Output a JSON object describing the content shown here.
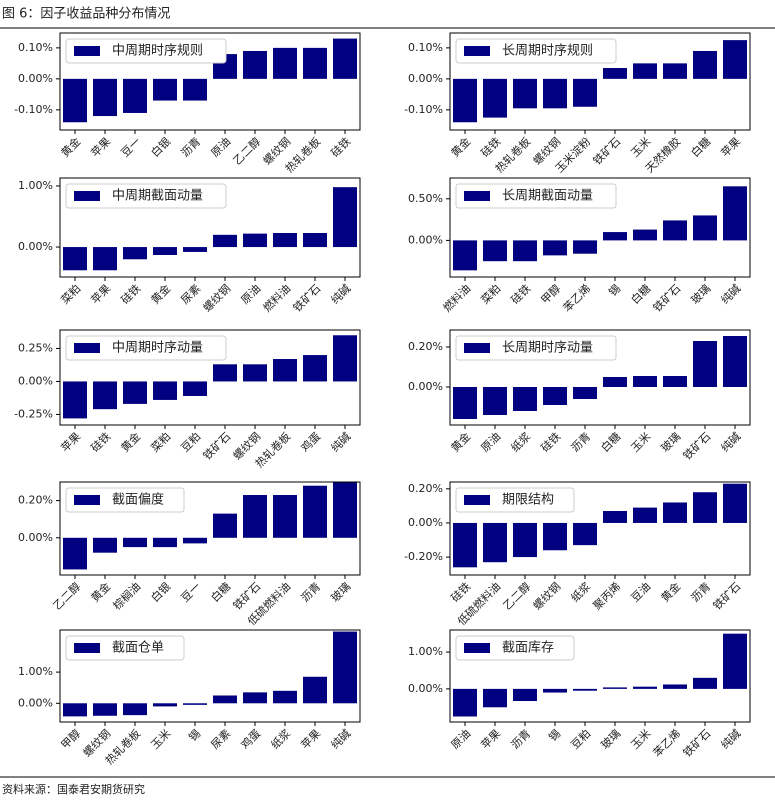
{
  "header": {
    "title": "图 6：因子收益品种分布情况"
  },
  "footer": {
    "source": "资料来源：国泰君安期货研究"
  },
  "chart_data": [
    {
      "type": "bar",
      "legend": "中周期时序规则",
      "legend_position": "upper left",
      "color": "#000080",
      "categories": [
        "黄金",
        "苹果",
        "豆一",
        "白银",
        "沥青",
        "原油",
        "乙二醇",
        "螺纹钢",
        "热轧卷板",
        "硅铁"
      ],
      "values": [
        -0.14,
        -0.12,
        -0.11,
        -0.07,
        -0.07,
        0.08,
        0.09,
        0.1,
        0.1,
        0.13
      ],
      "ylim": [
        -0.165,
        0.148
      ],
      "yticks": [
        {
          "value": -0.1,
          "label": "-0.10%"
        },
        {
          "value": 0,
          "label": "0.00%"
        },
        {
          "value": 0.1,
          "label": "0.10%"
        }
      ]
    },
    {
      "type": "bar",
      "legend": "长周期时序规则",
      "legend_position": "upper left",
      "color": "#000080",
      "categories": [
        "黄金",
        "硅铁",
        "热轧卷板",
        "螺纹钢",
        "玉米淀粉",
        "铁矿石",
        "玉米",
        "天然橡胶",
        "白糖",
        "苹果"
      ],
      "values": [
        -0.14,
        -0.125,
        -0.095,
        -0.095,
        -0.09,
        0.035,
        0.05,
        0.05,
        0.09,
        0.125
      ],
      "ylim": [
        -0.165,
        0.148
      ],
      "yticks": [
        {
          "value": -0.1,
          "label": "-0.10%"
        },
        {
          "value": 0,
          "label": "0.00%"
        },
        {
          "value": 0.1,
          "label": "0.10%"
        }
      ]
    },
    {
      "type": "bar",
      "legend": "中周期截面动量",
      "legend_position": "upper left",
      "color": "#000080",
      "categories": [
        "菜粕",
        "苹果",
        "硅铁",
        "黄金",
        "尿素",
        "螺纹钢",
        "原油",
        "燃料油",
        "铁矿石",
        "纯碱"
      ],
      "values": [
        -0.38,
        -0.38,
        -0.2,
        -0.13,
        -0.08,
        0.2,
        0.22,
        0.23,
        0.23,
        0.98
      ],
      "ylim": [
        -0.49,
        1.13
      ],
      "yticks": [
        {
          "value": 0,
          "label": "0.00%"
        },
        {
          "value": 1,
          "label": "1.00%"
        }
      ]
    },
    {
      "type": "bar",
      "legend": "长周期截面动量",
      "legend_position": "upper left",
      "color": "#000080",
      "categories": [
        "燃料油",
        "菜粕",
        "硅铁",
        "甲醇",
        "苯乙烯",
        "锡",
        "白糖",
        "铁矿石",
        "玻璃",
        "纯碱"
      ],
      "values": [
        -0.36,
        -0.25,
        -0.25,
        -0.18,
        -0.16,
        0.1,
        0.13,
        0.24,
        0.3,
        0.65
      ],
      "ylim": [
        -0.44,
        0.75
      ],
      "yticks": [
        {
          "value": 0,
          "label": "0.00%"
        },
        {
          "value": 0.5,
          "label": "0.50%"
        }
      ]
    },
    {
      "type": "bar",
      "legend": "中周期时序动量",
      "legend_position": "upper left",
      "color": "#000080",
      "categories": [
        "苹果",
        "硅铁",
        "黄金",
        "菜粕",
        "豆粕",
        "铁矿石",
        "螺纹钢",
        "热轧卷板",
        "鸡蛋",
        "纯碱"
      ],
      "values": [
        -0.28,
        -0.21,
        -0.17,
        -0.14,
        -0.11,
        0.13,
        0.13,
        0.17,
        0.2,
        0.35
      ],
      "ylim": [
        -0.33,
        0.39
      ],
      "yticks": [
        {
          "value": -0.25,
          "label": "-0.25%"
        },
        {
          "value": 0,
          "label": "0.00%"
        },
        {
          "value": 0.25,
          "label": "0.25%"
        }
      ]
    },
    {
      "type": "bar",
      "legend": "长周期时序动量",
      "legend_position": "upper left",
      "color": "#000080",
      "categories": [
        "黄金",
        "原油",
        "纸浆",
        "硅铁",
        "沥青",
        "白糖",
        "玉米",
        "玻璃",
        "铁矿石",
        "纯碱"
      ],
      "values": [
        -0.16,
        -0.14,
        -0.12,
        -0.09,
        -0.06,
        0.05,
        0.055,
        0.055,
        0.23,
        0.255
      ],
      "ylim": [
        -0.19,
        0.285
      ],
      "yticks": [
        {
          "value": 0,
          "label": "0.00%"
        },
        {
          "value": 0.2,
          "label": "0.20%"
        }
      ]
    },
    {
      "type": "bar",
      "legend": "截面偏度",
      "legend_position": "upper left",
      "color": "#000080",
      "categories": [
        "乙二醇",
        "黄金",
        "棕榈油",
        "白银",
        "豆一",
        "白糖",
        "铁矿石",
        "低硫燃料油",
        "沥青",
        "玻璃"
      ],
      "values": [
        -0.17,
        -0.08,
        -0.05,
        -0.05,
        -0.03,
        0.13,
        0.23,
        0.23,
        0.28,
        0.3
      ],
      "ylim": [
        -0.2,
        0.3
      ],
      "yticks": [
        {
          "value": 0,
          "label": "0.00%"
        },
        {
          "value": 0.2,
          "label": "0.20%"
        }
      ]
    },
    {
      "type": "bar",
      "legend": "期限结构",
      "legend_position": "upper left",
      "color": "#000080",
      "categories": [
        "硅铁",
        "低硫燃料油",
        "乙二醇",
        "螺纹钢",
        "纸浆",
        "聚丙烯",
        "豆油",
        "黄金",
        "沥青",
        "铁矿石"
      ],
      "values": [
        -0.26,
        -0.23,
        -0.2,
        -0.16,
        -0.13,
        0.07,
        0.09,
        0.12,
        0.18,
        0.23
      ],
      "ylim": [
        -0.305,
        0.24
      ],
      "yticks": [
        {
          "value": -0.2,
          "label": "-0.20%"
        },
        {
          "value": 0,
          "label": "0.00%"
        },
        {
          "value": 0.2,
          "label": "0.20%"
        }
      ]
    },
    {
      "type": "bar",
      "legend": "截面仓单",
      "legend_position": "upper left",
      "color": "#000080",
      "categories": [
        "甲醇",
        "螺纹钢",
        "热轧卷板",
        "玉米",
        "锡",
        "尿素",
        "鸡蛋",
        "纸浆",
        "苹果",
        "纯碱"
      ],
      "values": [
        -0.42,
        -0.4,
        -0.38,
        -0.1,
        -0.05,
        0.25,
        0.35,
        0.4,
        0.85,
        2.3
      ],
      "ylim": [
        -0.6,
        2.35
      ],
      "yticks": [
        {
          "value": 0,
          "label": "0.00%"
        },
        {
          "value": 1,
          "label": "1.00%"
        }
      ]
    },
    {
      "type": "bar",
      "legend": "截面库存",
      "legend_position": "upper left",
      "color": "#000080",
      "categories": [
        "原油",
        "苹果",
        "沥青",
        "锡",
        "豆粕",
        "玻璃",
        "玉米",
        "苯乙烯",
        "铁矿石",
        "纯碱"
      ],
      "values": [
        -0.75,
        -0.5,
        -0.33,
        -0.1,
        -0.05,
        0.04,
        0.06,
        0.12,
        0.3,
        1.5
      ],
      "ylim": [
        -0.9,
        1.6
      ],
      "yticks": [
        {
          "value": 0,
          "label": "0.00%"
        },
        {
          "value": 1,
          "label": "1.00%"
        }
      ]
    }
  ]
}
